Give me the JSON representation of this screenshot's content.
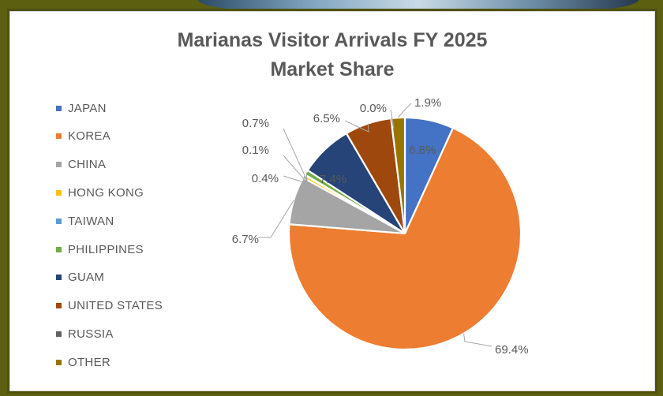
{
  "chart_data": {
    "type": "pie",
    "title": "Marianas Visitor Arrivals FY 2025",
    "subtitle": "Market Share",
    "legend_position": "left",
    "slices": [
      {
        "name": "JAPAN",
        "value": 6.8,
        "label": "6.8%",
        "color": "#4472c4"
      },
      {
        "name": "KOREA",
        "value": 69.4,
        "label": "69.4%",
        "color": "#ed7d31"
      },
      {
        "name": "CHINA",
        "value": 6.7,
        "label": "6.7%",
        "color": "#a5a5a5"
      },
      {
        "name": "HONG KONG",
        "value": 0.4,
        "label": "0.4%",
        "color": "#ffc000"
      },
      {
        "name": "TAIWAN",
        "value": 0.1,
        "label": "0.1%",
        "color": "#5b9bd5"
      },
      {
        "name": "PHILIPPINES",
        "value": 0.7,
        "label": "0.7%",
        "color": "#70ad47"
      },
      {
        "name": "GUAM",
        "value": 7.4,
        "label": "7.4%",
        "color": "#264478"
      },
      {
        "name": "UNITED STATES",
        "value": 6.5,
        "label": "6.5%",
        "color": "#9e480e"
      },
      {
        "name": "RUSSIA",
        "value": 0.0,
        "label": "0.0%",
        "color": "#636363"
      },
      {
        "name": "OTHER",
        "value": 1.9,
        "label": "1.9%",
        "color": "#997300"
      }
    ]
  }
}
